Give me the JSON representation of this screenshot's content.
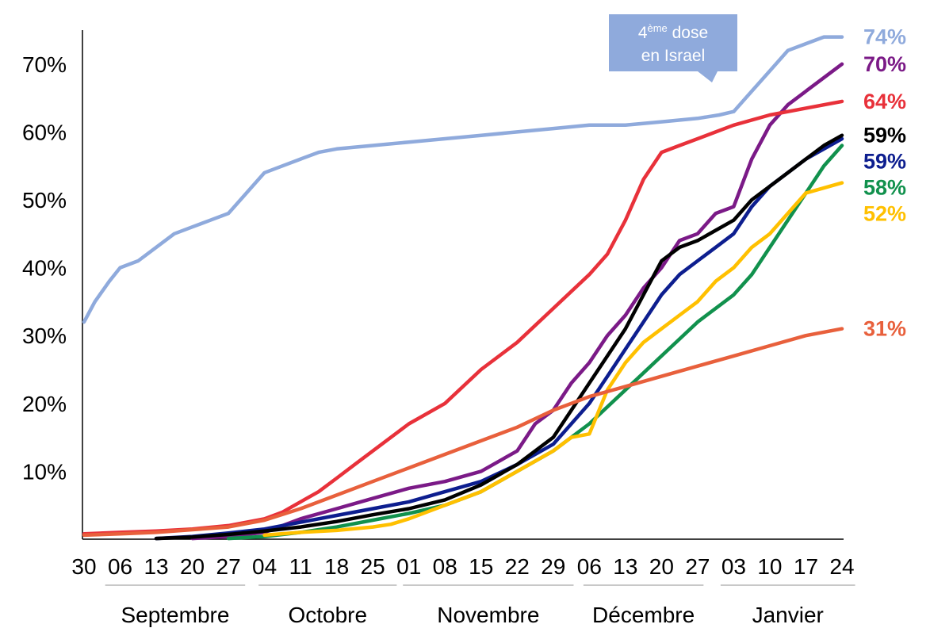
{
  "chart_data": {
    "type": "line",
    "ylim": [
      0,
      75
    ],
    "yticks": [
      "10%",
      "20%",
      "30%",
      "40%",
      "50%",
      "60%",
      "70%"
    ],
    "ytick_values": [
      10,
      20,
      30,
      40,
      50,
      60,
      70
    ],
    "xtick_labels": [
      "30",
      "06",
      "13",
      "20",
      "27",
      "04",
      "11",
      "18",
      "25",
      "01",
      "08",
      "15",
      "22",
      "29",
      "06",
      "13",
      "20",
      "27",
      "03",
      "10",
      "17",
      "24"
    ],
    "months": [
      "Septembre",
      "Octobre",
      "Novembre",
      "Décembre",
      "Janvier"
    ],
    "callout": {
      "sup": "ème",
      "line1_pre": "4",
      "line1_post": " dose",
      "line2": "en Israel"
    },
    "series": [
      {
        "color": "#8faadc",
        "end_label": "74%",
        "points": [
          [
            0,
            32
          ],
          [
            0.3,
            35
          ],
          [
            0.7,
            38
          ],
          [
            1,
            40
          ],
          [
            1.5,
            41
          ],
          [
            2,
            43
          ],
          [
            2.5,
            45
          ],
          [
            3,
            46
          ],
          [
            3.5,
            47
          ],
          [
            4,
            48
          ],
          [
            4.5,
            51
          ],
          [
            5,
            54
          ],
          [
            5.5,
            55
          ],
          [
            6,
            56
          ],
          [
            6.5,
            57
          ],
          [
            7,
            57.5
          ],
          [
            8,
            58
          ],
          [
            9,
            58.5
          ],
          [
            10,
            59
          ],
          [
            11,
            59.5
          ],
          [
            12,
            60
          ],
          [
            13,
            60.5
          ],
          [
            14,
            61
          ],
          [
            15,
            61
          ],
          [
            16,
            61.5
          ],
          [
            17,
            62
          ],
          [
            17.6,
            62.5
          ],
          [
            18,
            63
          ],
          [
            18.5,
            66
          ],
          [
            19,
            69
          ],
          [
            19.5,
            72
          ],
          [
            20,
            73
          ],
          [
            20.5,
            74
          ],
          [
            21,
            74
          ]
        ]
      },
      {
        "color": "#7b1a87",
        "end_label": "70%",
        "points": [
          [
            3,
            0.1
          ],
          [
            4,
            0.4
          ],
          [
            5,
            1
          ],
          [
            5.5,
            2
          ],
          [
            6,
            3
          ],
          [
            7,
            4.5
          ],
          [
            8,
            6
          ],
          [
            9,
            7.5
          ],
          [
            10,
            8.5
          ],
          [
            11,
            10
          ],
          [
            12,
            13
          ],
          [
            12.5,
            17
          ],
          [
            13,
            19
          ],
          [
            13.5,
            23
          ],
          [
            14,
            26
          ],
          [
            14.5,
            30
          ],
          [
            15,
            33
          ],
          [
            15.5,
            37
          ],
          [
            16,
            40
          ],
          [
            16.5,
            44
          ],
          [
            17,
            45
          ],
          [
            17.5,
            48
          ],
          [
            18,
            49
          ],
          [
            18.5,
            56
          ],
          [
            19,
            61
          ],
          [
            19.5,
            64
          ],
          [
            20,
            66
          ],
          [
            20.5,
            68
          ],
          [
            21,
            70
          ]
        ]
      },
      {
        "color": "#e8313a",
        "end_label": "64%",
        "points": [
          [
            0,
            0.8
          ],
          [
            1,
            1
          ],
          [
            2,
            1.2
          ],
          [
            3,
            1.5
          ],
          [
            4,
            2
          ],
          [
            5,
            3
          ],
          [
            5.5,
            4
          ],
          [
            6,
            5.5
          ],
          [
            6.5,
            7
          ],
          [
            7,
            9
          ],
          [
            7.5,
            11
          ],
          [
            8,
            13
          ],
          [
            8.5,
            15
          ],
          [
            9,
            17
          ],
          [
            10,
            20
          ],
          [
            11,
            25
          ],
          [
            12,
            29
          ],
          [
            13,
            34
          ],
          [
            14,
            39
          ],
          [
            14.5,
            42
          ],
          [
            15,
            47
          ],
          [
            15.5,
            53
          ],
          [
            16,
            57
          ],
          [
            16.5,
            58
          ],
          [
            17,
            59
          ],
          [
            17.5,
            60
          ],
          [
            18,
            61
          ],
          [
            19,
            62.5
          ],
          [
            20,
            63.5
          ],
          [
            21,
            64.5
          ]
        ]
      },
      {
        "color": "#0d1e8f",
        "end_label": "59%",
        "points": [
          [
            2,
            0.1
          ],
          [
            3,
            0.4
          ],
          [
            4,
            0.9
          ],
          [
            5,
            1.5
          ],
          [
            6,
            2.5
          ],
          [
            7,
            3.5
          ],
          [
            8,
            4.5
          ],
          [
            9,
            5.5
          ],
          [
            10,
            7
          ],
          [
            11,
            8.5
          ],
          [
            12,
            11
          ],
          [
            13,
            14
          ],
          [
            13.5,
            17
          ],
          [
            14,
            20
          ],
          [
            14.5,
            24
          ],
          [
            15,
            28
          ],
          [
            15.5,
            32
          ],
          [
            16,
            36
          ],
          [
            16.5,
            39
          ],
          [
            17,
            41
          ],
          [
            17.5,
            43
          ],
          [
            18,
            45
          ],
          [
            18.5,
            49
          ],
          [
            19,
            52
          ],
          [
            19.5,
            54
          ],
          [
            20,
            56
          ],
          [
            21,
            59
          ]
        ]
      },
      {
        "color": "#000000",
        "end_label": "59%",
        "points": [
          [
            2,
            0.1
          ],
          [
            3,
            0.3
          ],
          [
            4,
            0.7
          ],
          [
            5,
            1.2
          ],
          [
            6,
            1.8
          ],
          [
            7,
            2.6
          ],
          [
            8,
            3.6
          ],
          [
            9,
            4.5
          ],
          [
            10,
            5.8
          ],
          [
            11,
            8
          ],
          [
            12,
            11
          ],
          [
            13,
            15
          ],
          [
            13.5,
            19
          ],
          [
            14,
            23
          ],
          [
            14.5,
            27
          ],
          [
            15,
            31
          ],
          [
            15.5,
            36
          ],
          [
            16,
            41
          ],
          [
            16.5,
            43
          ],
          [
            17,
            44
          ],
          [
            17.5,
            45.5
          ],
          [
            18,
            47
          ],
          [
            18.5,
            50
          ],
          [
            19,
            52
          ],
          [
            19.5,
            54
          ],
          [
            20,
            56
          ],
          [
            20.5,
            58
          ],
          [
            21,
            59.5
          ]
        ]
      },
      {
        "color": "#11914d",
        "end_label": "58%",
        "points": [
          [
            4,
            0.1
          ],
          [
            5,
            0.4
          ],
          [
            6,
            1
          ],
          [
            7,
            1.8
          ],
          [
            8,
            2.8
          ],
          [
            9,
            3.8
          ],
          [
            10,
            5
          ],
          [
            11,
            7
          ],
          [
            12,
            10
          ],
          [
            13,
            13
          ],
          [
            14,
            17
          ],
          [
            15,
            22
          ],
          [
            16,
            27
          ],
          [
            17,
            32
          ],
          [
            18,
            36
          ],
          [
            18.5,
            39
          ],
          [
            19,
            43
          ],
          [
            19.5,
            47
          ],
          [
            20,
            51
          ],
          [
            20.5,
            55
          ],
          [
            21,
            58
          ]
        ]
      },
      {
        "color": "#ffc000",
        "end_label": "52%",
        "points": [
          [
            5,
            0.6
          ],
          [
            6,
            1
          ],
          [
            7,
            1.3
          ],
          [
            8,
            1.8
          ],
          [
            8.5,
            2.2
          ],
          [
            9,
            3
          ],
          [
            10,
            5
          ],
          [
            11,
            7
          ],
          [
            12,
            10
          ],
          [
            13,
            13
          ],
          [
            13.5,
            15
          ],
          [
            14,
            15.5
          ],
          [
            14.5,
            22
          ],
          [
            15,
            26
          ],
          [
            15.5,
            29
          ],
          [
            16,
            31
          ],
          [
            16.5,
            33
          ],
          [
            17,
            35
          ],
          [
            17.5,
            38
          ],
          [
            18,
            40
          ],
          [
            18.5,
            43
          ],
          [
            19,
            45
          ],
          [
            19.5,
            48
          ],
          [
            20,
            51
          ],
          [
            21,
            52.5
          ]
        ]
      },
      {
        "color": "#e8603c",
        "end_label": "31%",
        "points": [
          [
            0,
            0.6
          ],
          [
            1,
            0.8
          ],
          [
            2,
            1
          ],
          [
            3,
            1.4
          ],
          [
            4,
            1.8
          ],
          [
            5,
            2.8
          ],
          [
            6,
            4.5
          ],
          [
            7,
            6.5
          ],
          [
            8,
            8.5
          ],
          [
            9,
            10.5
          ],
          [
            10,
            12.5
          ],
          [
            11,
            14.5
          ],
          [
            12,
            16.5
          ],
          [
            13,
            19
          ],
          [
            14,
            21
          ],
          [
            15,
            22.5
          ],
          [
            16,
            24
          ],
          [
            17,
            25.5
          ],
          [
            18,
            27
          ],
          [
            19,
            28.5
          ],
          [
            20,
            30
          ],
          [
            21,
            31
          ]
        ]
      }
    ]
  }
}
